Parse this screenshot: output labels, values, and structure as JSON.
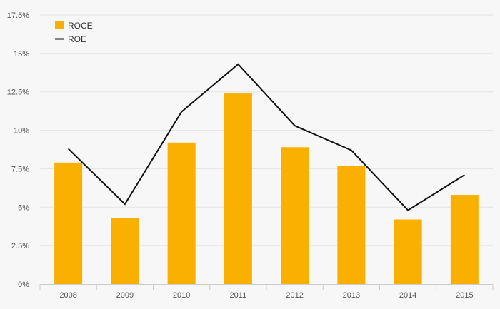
{
  "chart_data": {
    "type": "bar",
    "categories": [
      "2008",
      "2009",
      "2010",
      "2011",
      "2012",
      "2013",
      "2014",
      "2015"
    ],
    "series": [
      {
        "name": "ROCE",
        "type": "bar",
        "color": "#f9b000",
        "values": [
          7.9,
          4.3,
          9.2,
          12.4,
          8.9,
          7.7,
          4.2,
          5.8
        ]
      },
      {
        "name": "ROE",
        "type": "line",
        "color": "#111111",
        "values": [
          8.8,
          5.2,
          11.2,
          14.3,
          10.3,
          8.7,
          4.8,
          7.1
        ]
      }
    ],
    "y_unit": "%",
    "ylim": [
      0,
      17.5
    ],
    "y_ticks": [
      0,
      2.5,
      5,
      7.5,
      10,
      12.5,
      15,
      17.5
    ],
    "y_tick_labels": [
      "0%",
      "2.5%",
      "5%",
      "7.5%",
      "10%",
      "12.5%",
      "15%",
      "17.5%"
    ],
    "grid": true,
    "legend_position": "top-left",
    "colors": {
      "background": "#f7f7f7",
      "grid": "#e3e3e3",
      "axis": "#cccccc",
      "text": "#555555"
    }
  }
}
